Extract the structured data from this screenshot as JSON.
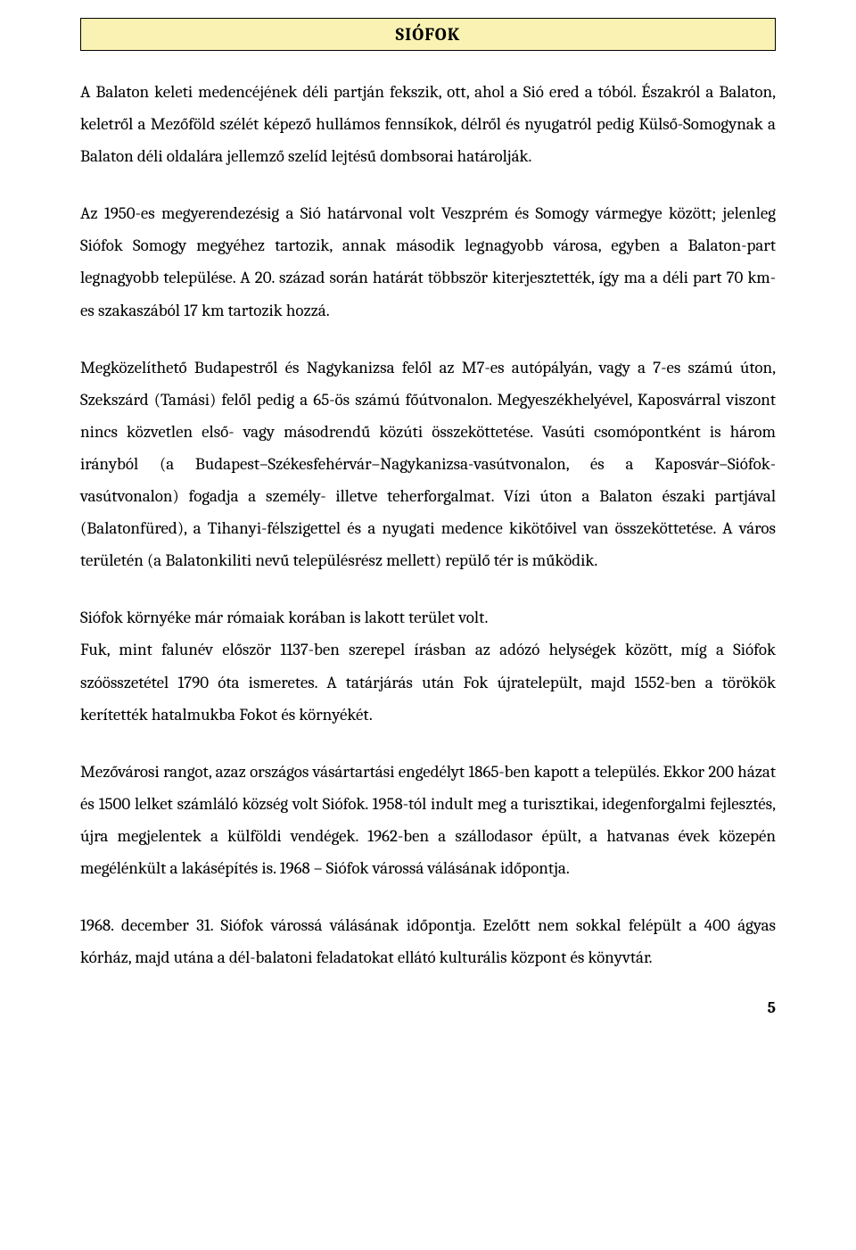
{
  "document": {
    "title": "SIÓFOK",
    "title_box": {
      "background_color": "#f9f2b2",
      "border_color": "#000000"
    },
    "paragraphs": {
      "p1": "A Balaton keleti medencéjének déli partján fekszik, ott, ahol a Sió ered a tóból. Északról a Balaton, keletről a Mezőföld szélét képező hullámos fennsíkok, délről és nyugatról pedig Külső-Somogynak a Balaton déli oldalára jellemző szelíd lejtésű dombsorai határolják.",
      "p2": "Az 1950-es megyerendezésig a Sió határvonal volt Veszprém és Somogy vármegye között; jelenleg Siófok Somogy megyéhez tartozik, annak második legnagyobb városa, egyben a Balaton-part legnagyobb települése. A 20. század során határát többször kiterjesztették, így ma a déli part 70 km-es szakaszából 17 km tartozik hozzá.",
      "p3": "Megközelíthető Budapestről és Nagykanizsa felől az M7-es autópályán, vagy a 7-es számú úton, Szekszárd (Tamási) felől pedig a 65-ös számú főútvonalon. Megyeszékhelyével, Kaposvárral viszont nincs közvetlen első- vagy másodrendű közúti összeköttetése. Vasúti csomópontként is három irányból (a Budapest–Székesfehérvár–Nagykanizsa-vasútvonalon, és a Kaposvár–Siófok-vasútvonalon) fogadja a személy- illetve teherforgalmat. Vízi úton a Balaton északi partjával (Balatonfüred), a Tihanyi-félszigettel és a nyugati medence kikötőivel van összeköttetése. A város területén (a Balatonkiliti nevű településrész mellett) repülő tér is működik.",
      "p4a": "Siófok környéke már rómaiak korában is lakott terület volt.",
      "p4b": "Fuk, mint falunév először 1137-ben szerepel írásban az adózó helységek között, míg a Siófok szóösszetétel 1790 óta ismeretes. A tatárjárás után Fok újratelepült, majd 1552-ben a törökök kerítették hatalmukba Fokot és környékét.",
      "p5": "Mezővárosi rangot, azaz országos vásártartási engedélyt 1865-ben kapott a település. Ekkor 200 házat és 1500 lelket számláló község volt Siófok. 1958-tól indult meg a turisztikai, idegenforgalmi fejlesztés, újra megjelentek a külföldi vendégek. 1962-ben a szállodasor épült, a hatvanas évek közepén megélénkült a lakásépítés is. 1968 – Siófok várossá válásának időpontja.",
      "p6": "1968. december 31. Siófok várossá válásának időpontja. Ezelőtt nem sokkal felépült a 400 ágyas kórház, majd utána a dél-balatoni feladatokat ellátó kulturális központ és könyvtár."
    },
    "page_number": "5",
    "typography": {
      "body_font": "Cambria, Georgia, serif",
      "body_fontsize": 19,
      "title_fontsize": 20,
      "line_height": 1.9,
      "text_align": "justify",
      "text_color": "#000000",
      "background_color": "#ffffff"
    }
  }
}
